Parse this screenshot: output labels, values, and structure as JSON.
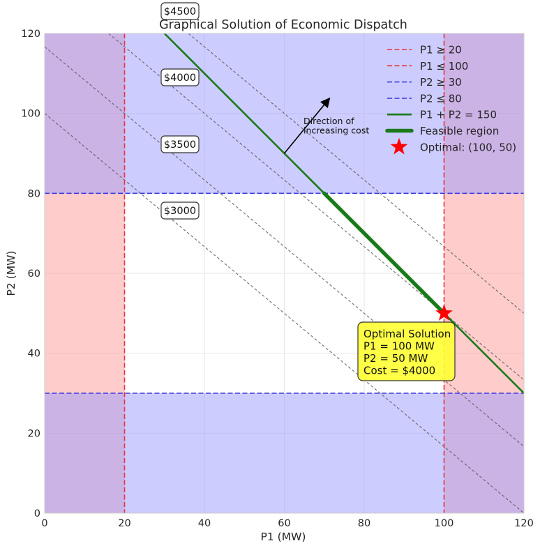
{
  "chart_data": {
    "type": "line",
    "title": "Graphical Solution of Economic Dispatch",
    "xlabel": "P1 (MW)",
    "ylabel": "P2 (MW)",
    "xlim": [
      0,
      120
    ],
    "ylim": [
      0,
      120
    ],
    "xticks": [
      "0",
      "20",
      "40",
      "60",
      "80",
      "100",
      "120"
    ],
    "yticks": [
      "0",
      "20",
      "40",
      "60",
      "80",
      "100",
      "120"
    ],
    "grid": true,
    "constraints": [
      {
        "name": "P1 ≥ 20",
        "axis": "x",
        "value": 20,
        "color": "#e8333d"
      },
      {
        "name": "P1 ≤ 100",
        "axis": "x",
        "value": 100,
        "color": "#e8333d"
      },
      {
        "name": "P2 ≥ 30",
        "axis": "y",
        "value": 30,
        "color": "#3b3bdf"
      },
      {
        "name": "P2 ≤ 80",
        "axis": "y",
        "value": 80,
        "color": "#3b3bdf"
      }
    ],
    "demand_line": {
      "name": "P1 + P2 = 150",
      "points": [
        [
          30,
          120
        ],
        [
          120,
          30
        ]
      ],
      "color": "#1a7a1a"
    },
    "feasible_region": {
      "name": "Feasible region",
      "points": [
        [
          70,
          80
        ],
        [
          100,
          50
        ]
      ],
      "color": "#1a7a1a"
    },
    "cost_contours": [
      {
        "label": "$3000",
        "points": [
          [
            0,
            100
          ],
          [
            120,
            0
          ]
        ]
      },
      {
        "label": "$3500",
        "points": [
          [
            0,
            116.67
          ],
          [
            120,
            16.67
          ]
        ]
      },
      {
        "label": "$4000",
        "points": [
          [
            16,
            120
          ],
          [
            120,
            33.33
          ]
        ]
      },
      {
        "label": "$4500",
        "points": [
          [
            36,
            120
          ],
          [
            120,
            50
          ]
        ]
      }
    ],
    "optimal": {
      "name": "Optimal: (100, 50)",
      "x": 100,
      "y": 50,
      "color": "#ff0000"
    },
    "direction_arrow": {
      "from": [
        60,
        90
      ],
      "to": [
        71.5,
        104
      ],
      "label_lines": [
        "Direction of",
        "increasing cost"
      ]
    },
    "optimal_annotation": {
      "lines": [
        "Optimal Solution",
        "P1 = 100 MW",
        "P2 = 50 MW",
        "Cost = $4000"
      ]
    },
    "shading": {
      "x_infeasible_color": "#ff9999",
      "y_infeasible_color": "#9999ff",
      "alpha": 0.5
    },
    "legend_placement": "top-right"
  }
}
